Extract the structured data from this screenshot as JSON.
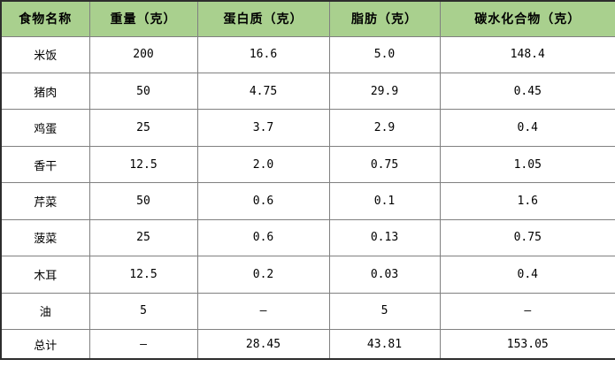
{
  "chart_data": {
    "type": "table",
    "title": "",
    "columns": [
      "食物名称",
      "重量（克）",
      "蛋白质（克）",
      "脂肪（克）",
      "碳水化合物（克）"
    ],
    "rows": [
      [
        "米饭",
        "200",
        "16.6",
        "5.0",
        "148.4"
      ],
      [
        "猪肉",
        "50",
        "4.75",
        "29.9",
        "0.45"
      ],
      [
        "鸡蛋",
        "25",
        "3.7",
        "2.9",
        "0.4"
      ],
      [
        "香干",
        "12.5",
        "2.0",
        "0.75",
        "1.05"
      ],
      [
        "芹菜",
        "50",
        "0.6",
        "0.1",
        "1.6"
      ],
      [
        "菠菜",
        "25",
        "0.6",
        "0.13",
        "0.75"
      ],
      [
        "木耳",
        "12.5",
        "0.2",
        "0.03",
        "0.4"
      ],
      [
        "油",
        "5",
        "–",
        "5",
        "–"
      ],
      [
        "总计",
        "–",
        "28.45",
        "43.81",
        "153.05"
      ]
    ],
    "layout": {
      "header_position": "top",
      "grid": true
    }
  },
  "colors": {
    "header_bg": "#a9d08e",
    "grid_line": "#808080",
    "outer_border": "#2d2d2d",
    "text": "#000000",
    "body_bg": "#ffffff"
  }
}
